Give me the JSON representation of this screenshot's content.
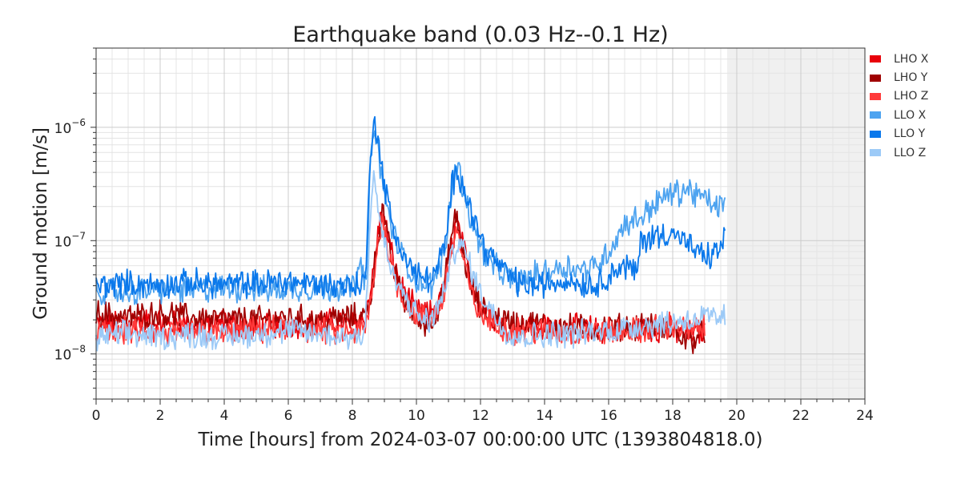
{
  "chart_data": {
    "type": "line",
    "title": "Earthquake band (0.03 Hz--0.1 Hz)",
    "xlabel": "Time [hours] from 2024-03-07 00:00:00 UTC (1393804818.0)",
    "ylabel": "Ground motion [m/s]",
    "xlim": [
      0,
      24
    ],
    "ylim": [
      4e-09,
      5e-06
    ],
    "yscale": "log",
    "xticks": [
      0,
      2,
      4,
      6,
      8,
      10,
      12,
      14,
      16,
      18,
      20,
      22,
      24
    ],
    "xtick_labels": [
      "0",
      "2",
      "4",
      "6",
      "8",
      "10",
      "12",
      "14",
      "16",
      "18",
      "20",
      "22",
      "24"
    ],
    "ytick_labels": [
      {
        "value": 1e-08,
        "base": "10",
        "exp": "−8"
      },
      {
        "value": 1e-07,
        "base": "10",
        "exp": "−7"
      },
      {
        "value": 1e-06,
        "base": "10",
        "exp": "−6"
      }
    ],
    "grid": true,
    "legend_position": "right",
    "future_region": [
      19.7,
      24
    ],
    "series": [
      {
        "name": "LHO X",
        "color": "#e8000b",
        "points": [
          [
            0,
            1.8e-08
          ],
          [
            1,
            2e-08
          ],
          [
            2,
            1.9e-08
          ],
          [
            3,
            1.8e-08
          ],
          [
            4,
            1.9e-08
          ],
          [
            5,
            1.7e-08
          ],
          [
            6,
            1.8e-08
          ],
          [
            7,
            1.9e-08
          ],
          [
            8,
            1.9e-08
          ],
          [
            8.4,
            2.1e-08
          ],
          [
            8.6,
            4e-08
          ],
          [
            8.8,
            1.2e-07
          ],
          [
            8.95,
            1.8e-07
          ],
          [
            9.1,
            1.1e-07
          ],
          [
            9.3,
            6e-08
          ],
          [
            9.6,
            3.5e-08
          ],
          [
            10,
            2.4e-08
          ],
          [
            10.4,
            2.2e-08
          ],
          [
            10.8,
            3.2e-08
          ],
          [
            11.1,
            9e-08
          ],
          [
            11.25,
            1.5e-07
          ],
          [
            11.4,
            1e-07
          ],
          [
            11.7,
            4.5e-08
          ],
          [
            12,
            2.6e-08
          ],
          [
            12.5,
            2e-08
          ],
          [
            13,
            1.8e-08
          ],
          [
            14,
            1.7e-08
          ],
          [
            15,
            1.7e-08
          ],
          [
            16,
            1.6e-08
          ],
          [
            17,
            1.7e-08
          ],
          [
            18,
            1.6e-08
          ],
          [
            18.5,
            1.5e-08
          ],
          [
            19,
            1.6e-08
          ]
        ]
      },
      {
        "name": "LHO Y",
        "color": "#a00000",
        "points": [
          [
            0,
            2.3e-08
          ],
          [
            1,
            2.1e-08
          ],
          [
            2,
            2.3e-08
          ],
          [
            3,
            2.1e-08
          ],
          [
            4,
            2e-08
          ],
          [
            5,
            2e-08
          ],
          [
            6,
            2.1e-08
          ],
          [
            7,
            2e-08
          ],
          [
            8,
            2.1e-08
          ],
          [
            8.4,
            2.2e-08
          ],
          [
            8.6,
            3.5e-08
          ],
          [
            8.8,
            1.1e-07
          ],
          [
            8.95,
            1.9e-07
          ],
          [
            9.1,
            1e-07
          ],
          [
            9.3,
            5.5e-08
          ],
          [
            9.6,
            3e-08
          ],
          [
            10,
            2e-08
          ],
          [
            10.4,
            1.8e-08
          ],
          [
            10.8,
            3e-08
          ],
          [
            11.1,
            1.1e-07
          ],
          [
            11.25,
            1.7e-07
          ],
          [
            11.4,
            9e-08
          ],
          [
            11.7,
            4e-08
          ],
          [
            12,
            2.5e-08
          ],
          [
            12.5,
            2.1e-08
          ],
          [
            13,
            1.9e-08
          ],
          [
            14,
            1.8e-08
          ],
          [
            15,
            1.7e-08
          ],
          [
            16,
            1.7e-08
          ],
          [
            17,
            1.8e-08
          ],
          [
            18,
            1.6e-08
          ],
          [
            18.5,
            1.3e-08
          ],
          [
            19,
            1.5e-08
          ]
        ]
      },
      {
        "name": "LHO Z",
        "color": "#ff3a3a",
        "points": [
          [
            0,
            1.5e-08
          ],
          [
            1,
            1.6e-08
          ],
          [
            2,
            1.5e-08
          ],
          [
            3,
            1.6e-08
          ],
          [
            4,
            1.5e-08
          ],
          [
            5,
            1.6e-08
          ],
          [
            6,
            1.7e-08
          ],
          [
            7,
            1.6e-08
          ],
          [
            8,
            1.5e-08
          ],
          [
            8.4,
            1.7e-08
          ],
          [
            8.6,
            3e-08
          ],
          [
            8.8,
            1e-07
          ],
          [
            8.95,
            1.5e-07
          ],
          [
            9.1,
            9e-08
          ],
          [
            9.3,
            5e-08
          ],
          [
            9.6,
            3e-08
          ],
          [
            10,
            2.2e-08
          ],
          [
            10.4,
            2e-08
          ],
          [
            10.8,
            2.8e-08
          ],
          [
            11.1,
            8e-08
          ],
          [
            11.25,
            1.3e-07
          ],
          [
            11.4,
            8e-08
          ],
          [
            11.7,
            3.5e-08
          ],
          [
            12,
            2.2e-08
          ],
          [
            12.5,
            1.8e-08
          ],
          [
            13,
            1.6e-08
          ],
          [
            14,
            1.6e-08
          ],
          [
            15,
            1.5e-08
          ],
          [
            16,
            1.6e-08
          ],
          [
            17,
            1.6e-08
          ],
          [
            18,
            1.8e-08
          ],
          [
            18.5,
            1.6e-08
          ],
          [
            19,
            1.7e-08
          ]
        ]
      },
      {
        "name": "LLO X",
        "color": "#4da3f0",
        "points": [
          [
            0,
            3.6e-08
          ],
          [
            1,
            3.5e-08
          ],
          [
            2,
            3.7e-08
          ],
          [
            3,
            3.6e-08
          ],
          [
            4,
            3.8e-08
          ],
          [
            5,
            3.7e-08
          ],
          [
            6,
            3.7e-08
          ],
          [
            7,
            3.8e-08
          ],
          [
            8,
            3.9e-08
          ],
          [
            8.3,
            6e-08
          ],
          [
            8.45,
            3.8e-08
          ],
          [
            8.55,
            3.5e-07
          ],
          [
            8.65,
            1.2e-06
          ],
          [
            8.8,
            6e-07
          ],
          [
            9,
            2.5e-07
          ],
          [
            9.3,
            1.1e-07
          ],
          [
            9.7,
            6e-08
          ],
          [
            10,
            4.5e-08
          ],
          [
            10.5,
            4e-08
          ],
          [
            10.9,
            8e-08
          ],
          [
            11.1,
            3e-07
          ],
          [
            11.25,
            5e-07
          ],
          [
            11.45,
            3e-07
          ],
          [
            11.8,
            1.2e-07
          ],
          [
            12.2,
            7e-08
          ],
          [
            12.7,
            5e-08
          ],
          [
            13.2,
            4.5e-08
          ],
          [
            13.7,
            5e-08
          ],
          [
            14.2,
            5.5e-08
          ],
          [
            14.7,
            6e-08
          ],
          [
            15.2,
            5.5e-08
          ],
          [
            15.6,
            6e-08
          ],
          [
            16,
            8e-08
          ],
          [
            16.5,
            1.4e-07
          ],
          [
            17,
            1.6e-07
          ],
          [
            17.5,
            2.2e-07
          ],
          [
            18,
            2.6e-07
          ],
          [
            18.5,
            2.8e-07
          ],
          [
            19,
            2.3e-07
          ],
          [
            19.4,
            2e-07
          ],
          [
            19.65,
            2.1e-07
          ]
        ]
      },
      {
        "name": "LLO Y",
        "color": "#0a78eb",
        "points": [
          [
            0,
            4e-08
          ],
          [
            1,
            4.2e-08
          ],
          [
            2,
            4e-08
          ],
          [
            3,
            4.3e-08
          ],
          [
            4,
            4.1e-08
          ],
          [
            5,
            4.2e-08
          ],
          [
            6,
            4.4e-08
          ],
          [
            7,
            4.1e-08
          ],
          [
            8,
            4e-08
          ],
          [
            8.4,
            4.3e-08
          ],
          [
            8.55,
            4e-07
          ],
          [
            8.65,
            1.35e-06
          ],
          [
            8.8,
            8e-07
          ],
          [
            9,
            3e-07
          ],
          [
            9.3,
            1.2e-07
          ],
          [
            9.7,
            6.5e-08
          ],
          [
            10,
            5e-08
          ],
          [
            10.5,
            4.5e-08
          ],
          [
            10.9,
            9e-08
          ],
          [
            11.1,
            3e-07
          ],
          [
            11.3,
            4e-07
          ],
          [
            11.5,
            3e-07
          ],
          [
            11.8,
            1.5e-07
          ],
          [
            12.2,
            8e-08
          ],
          [
            12.7,
            5.5e-08
          ],
          [
            13.2,
            4.2e-08
          ],
          [
            13.7,
            4e-08
          ],
          [
            14.2,
            4.2e-08
          ],
          [
            14.7,
            4.5e-08
          ],
          [
            15.2,
            4.2e-08
          ],
          [
            15.6,
            4e-08
          ],
          [
            16,
            5e-08
          ],
          [
            16.5,
            6e-08
          ],
          [
            16.9,
            5.2e-08
          ],
          [
            17,
            1e-07
          ],
          [
            17.5,
            1.1e-07
          ],
          [
            18,
            1.2e-07
          ],
          [
            18.5,
            9e-08
          ],
          [
            19,
            7e-08
          ],
          [
            19.4,
            8e-08
          ],
          [
            19.65,
            1.05e-07
          ]
        ]
      },
      {
        "name": "LLO Z",
        "color": "#9ccaf7",
        "points": [
          [
            0,
            1.4e-08
          ],
          [
            1,
            1.5e-08
          ],
          [
            2,
            1.4e-08
          ],
          [
            3,
            1.5e-08
          ],
          [
            4,
            1.4e-08
          ],
          [
            5,
            1.5e-08
          ],
          [
            6,
            1.6e-08
          ],
          [
            7,
            1.5e-08
          ],
          [
            8,
            1.4e-08
          ],
          [
            8.4,
            1.6e-08
          ],
          [
            8.55,
            1.5e-07
          ],
          [
            8.65,
            4e-07
          ],
          [
            8.8,
            2e-07
          ],
          [
            9,
            9e-08
          ],
          [
            9.3,
            4.5e-08
          ],
          [
            9.7,
            3e-08
          ],
          [
            10,
            2.2e-08
          ],
          [
            10.4,
            1.9e-08
          ],
          [
            10.8,
            3e-08
          ],
          [
            11.1,
            7e-08
          ],
          [
            11.3,
            1e-07
          ],
          [
            11.6,
            7e-08
          ],
          [
            11.9,
            4e-08
          ],
          [
            12.3,
            2.5e-08
          ],
          [
            12.8,
            1.6e-08
          ],
          [
            13.3,
            1.4e-08
          ],
          [
            14,
            1.5e-08
          ],
          [
            15,
            1.5e-08
          ],
          [
            16,
            1.6e-08
          ],
          [
            17,
            1.8e-08
          ],
          [
            18,
            1.9e-08
          ],
          [
            19,
            2.1e-08
          ],
          [
            19.4,
            2e-08
          ],
          [
            19.65,
            2.2e-08
          ]
        ]
      }
    ]
  }
}
